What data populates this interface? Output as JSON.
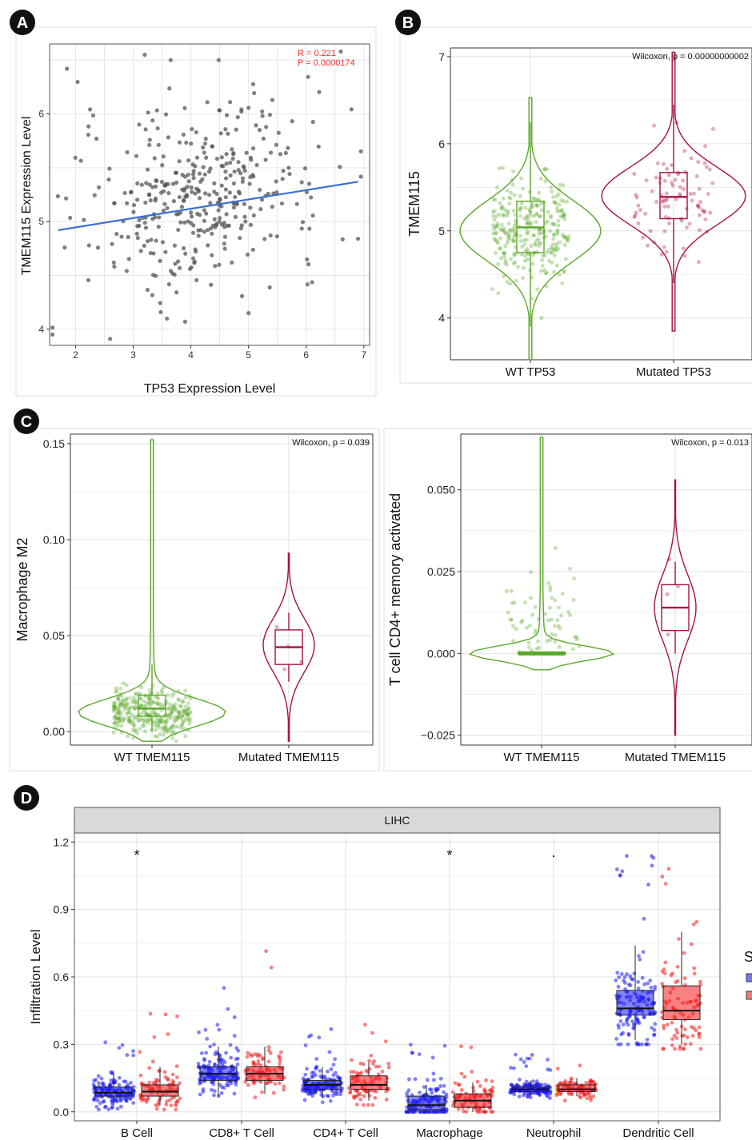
{
  "colors": {
    "badge": "#111111",
    "scatter_point": "#555555",
    "regression": "#3b6fd6",
    "corr_text": "#ff2a2a",
    "wt": "#5ba82a",
    "mut": "#a8123c",
    "d_wt": "#1b1bf2",
    "d_mut": "#f21b1b",
    "grid": "#e6e6e6",
    "strip": "#d9d9d9"
  },
  "chart_data": [
    {
      "id": "A",
      "badge": "A",
      "type": "scatter",
      "xlabel": "TP53 Expression Level",
      "ylabel": "TMEM115 Expression Level",
      "xlim": [
        1.55,
        7.1
      ],
      "ylim": [
        3.85,
        6.65
      ],
      "xticks": [
        2,
        3,
        4,
        5,
        6,
        7
      ],
      "yticks": [
        4,
        5,
        6
      ],
      "annotations": [
        "R = 0.221",
        "P = 0.0000174"
      ],
      "regression": {
        "x": [
          1.7,
          6.9
        ],
        "y": [
          4.92,
          5.37
        ]
      },
      "n_points": 380,
      "notable_points": [
        [
          3.2,
          6.55
        ],
        [
          2.6,
          3.91
        ],
        [
          1.85,
          6.42
        ],
        [
          6.6,
          6.58
        ],
        [
          5.0,
          4.15
        ],
        [
          3.9,
          4.07
        ],
        [
          6.9,
          4.84
        ]
      ]
    },
    {
      "id": "B",
      "badge": "B",
      "type": "violin",
      "categories": [
        "WT TP53",
        "Mutated TP53"
      ],
      "ylabel": "TMEM115",
      "ylim": [
        3.52,
        7.1
      ],
      "yticks": [
        4,
        5,
        6,
        7
      ],
      "annotation": "Wilcoxon, p = 0.00000000002",
      "series": [
        {
          "category": "WT TP53",
          "min": 3.52,
          "max": 6.53,
          "q1": 4.75,
          "median": 5.04,
          "q3": 5.34,
          "whisker_low": 3.9,
          "whisker_high": 6.25,
          "mode": 5.0,
          "n": 290
        },
        {
          "category": "Mutated TP53",
          "min": 3.85,
          "max": 7.05,
          "q1": 5.14,
          "median": 5.39,
          "q3": 5.67,
          "whisker_low": 4.4,
          "whisker_high": 6.45,
          "mode": 5.4,
          "n": 90
        }
      ]
    },
    {
      "id": "C1",
      "badge": "C",
      "type": "violin",
      "categories": [
        "WT TMEM115",
        "Mutated TMEM115"
      ],
      "ylabel": "Macrophage M2",
      "ylim": [
        -0.007,
        0.155
      ],
      "yticks": [
        0.0,
        0.05,
        0.1,
        0.15
      ],
      "ytick_labels": [
        "0.00",
        "0.05",
        "0.10",
        "0.15"
      ],
      "annotation": "Wilcoxon, p = 0.039",
      "series": [
        {
          "category": "WT TMEM115",
          "min": -0.005,
          "max": 0.152,
          "q1": 0.008,
          "median": 0.012,
          "q3": 0.019,
          "whisker_low": 0.0,
          "whisker_high": 0.035,
          "mode": 0.01,
          "n": 320
        },
        {
          "category": "Mutated TMEM115",
          "min": -0.005,
          "max": 0.093,
          "q1": 0.035,
          "median": 0.044,
          "q3": 0.053,
          "whisker_low": 0.026,
          "whisker_high": 0.062,
          "mode": 0.045,
          "n": 4
        }
      ]
    },
    {
      "id": "C2",
      "type": "violin",
      "categories": [
        "WT TMEM115",
        "Mutated TMEM115"
      ],
      "ylabel": "T cell CD4+ memory activated",
      "ylim": [
        -0.028,
        0.067
      ],
      "yticks": [
        -0.025,
        0.0,
        0.025,
        0.05
      ],
      "ytick_labels": [
        "−0.025",
        "0.000",
        "0.025",
        "0.050"
      ],
      "annotation": "Wilcoxon, p = 0.013",
      "series": [
        {
          "category": "WT TMEM115",
          "min": -0.005,
          "max": 0.066,
          "q1": 0.0,
          "median": 0.0,
          "q3": 0.0,
          "whisker_low": 0.0,
          "whisker_high": 0.0,
          "mode": 0.0,
          "n": 320
        },
        {
          "category": "Mutated TMEM115",
          "min": -0.025,
          "max": 0.053,
          "q1": 0.007,
          "median": 0.014,
          "q3": 0.021,
          "whisker_low": 0.0,
          "whisker_high": 0.028,
          "mode": 0.014,
          "n": 4
        }
      ]
    },
    {
      "id": "D",
      "badge": "D",
      "type": "box",
      "panel_strip": "LIHC",
      "ylabel": "Infiltration Level",
      "ylim": [
        -0.04,
        1.24
      ],
      "yticks": [
        0.0,
        0.3,
        0.6,
        0.9,
        1.2
      ],
      "ytick_labels": [
        "0.0",
        "0.3",
        "0.6",
        "0.9",
        "1.2"
      ],
      "categories": [
        "B Cell",
        "CD8+ T Cell",
        "CD4+ T Cell",
        "Macrophage",
        "Neutrophil",
        "Dendritic Cell"
      ],
      "significance": [
        "*",
        "",
        "",
        "*",
        ".",
        ""
      ],
      "legend_partial": "S",
      "series": [
        {
          "group": "wt",
          "boxes": [
            {
              "q1": 0.07,
              "median": 0.085,
              "q3": 0.11,
              "whisker_low": 0.03,
              "whisker_high": 0.17,
              "max": 0.44,
              "n": 150
            },
            {
              "q1": 0.14,
              "median": 0.17,
              "q3": 0.2,
              "whisker_low": 0.07,
              "whisker_high": 0.29,
              "max": 0.58,
              "n": 150
            },
            {
              "q1": 0.1,
              "median": 0.12,
              "q3": 0.14,
              "whisker_low": 0.06,
              "whisker_high": 0.2,
              "max": 0.37,
              "n": 150
            },
            {
              "q1": 0.01,
              "median": 0.03,
              "q3": 0.07,
              "whisker_low": 0.0,
              "whisker_high": 0.12,
              "max": 0.3,
              "n": 150
            },
            {
              "q1": 0.09,
              "median": 0.1,
              "q3": 0.11,
              "whisker_low": 0.07,
              "whisker_high": 0.14,
              "max": 0.26,
              "n": 150
            },
            {
              "q1": 0.43,
              "median": 0.46,
              "q3": 0.54,
              "whisker_low": 0.32,
              "whisker_high": 0.74,
              "max": 1.16,
              "n": 150
            }
          ]
        },
        {
          "group": "mut",
          "boxes": [
            {
              "q1": 0.07,
              "median": 0.09,
              "q3": 0.12,
              "whisker_low": 0.03,
              "whisker_high": 0.2,
              "max": 0.45,
              "n": 90
            },
            {
              "q1": 0.14,
              "median": 0.17,
              "q3": 0.2,
              "whisker_low": 0.08,
              "whisker_high": 0.29,
              "max": 0.72,
              "n": 90
            },
            {
              "q1": 0.1,
              "median": 0.12,
              "q3": 0.16,
              "whisker_low": 0.05,
              "whisker_high": 0.22,
              "max": 0.4,
              "n": 90
            },
            {
              "q1": 0.02,
              "median": 0.05,
              "q3": 0.08,
              "whisker_low": 0.0,
              "whisker_high": 0.13,
              "max": 0.34,
              "n": 90
            },
            {
              "q1": 0.09,
              "median": 0.1,
              "q3": 0.12,
              "whisker_low": 0.07,
              "whisker_high": 0.15,
              "max": 0.26,
              "n": 90
            },
            {
              "q1": 0.41,
              "median": 0.45,
              "q3": 0.56,
              "whisker_low": 0.3,
              "whisker_high": 0.8,
              "max": 1.16,
              "n": 90
            }
          ]
        }
      ]
    }
  ]
}
